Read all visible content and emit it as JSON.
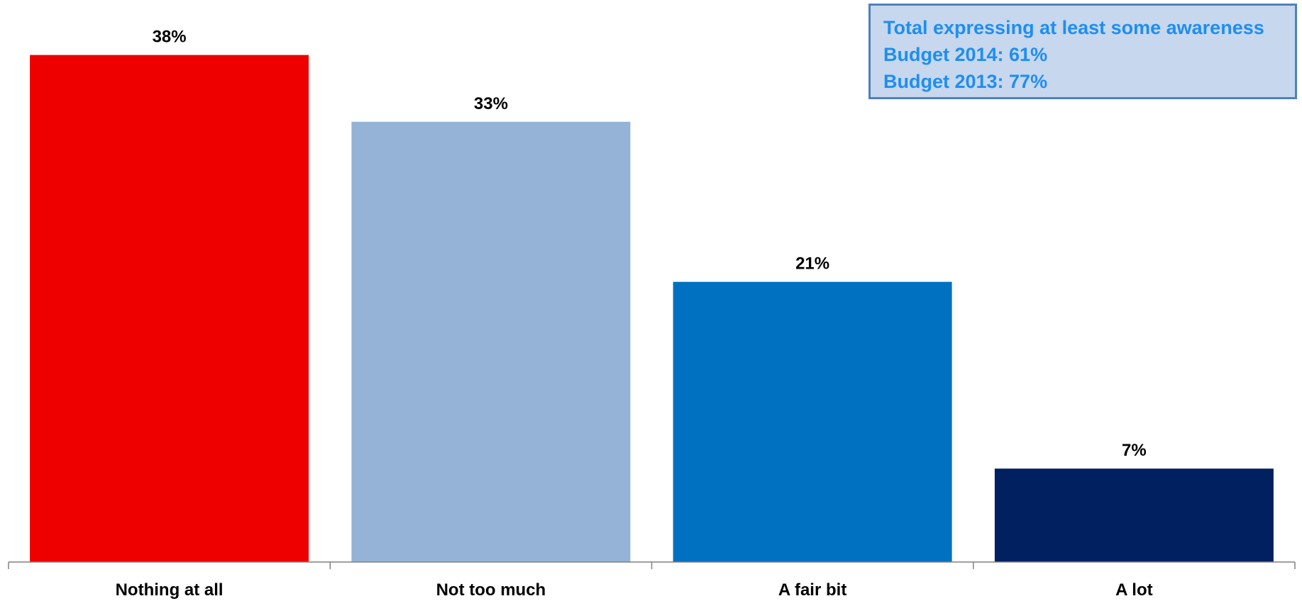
{
  "chart_data": {
    "type": "bar",
    "categories": [
      "Nothing at all",
      "Not too much",
      "A fair bit",
      "A lot"
    ],
    "values": [
      38,
      33,
      21,
      7
    ],
    "value_labels": [
      "38%",
      "33%",
      "21%",
      "7%"
    ],
    "ylim": [
      0,
      40
    ],
    "grid": false,
    "legend": "none",
    "colors": [
      "#ee0000",
      "#95b3d7",
      "#0070c0",
      "#002060"
    ]
  },
  "callout": {
    "title": "Total expressing at least some awareness",
    "line1": "Budget 2014: 61%",
    "line2": "Budget 2013: 77%"
  },
  "colors": {
    "callout_text": "#1f8ef0",
    "callout_fill": "#c6d7ee",
    "callout_border": "#4f81bd",
    "axis": "#808080"
  }
}
